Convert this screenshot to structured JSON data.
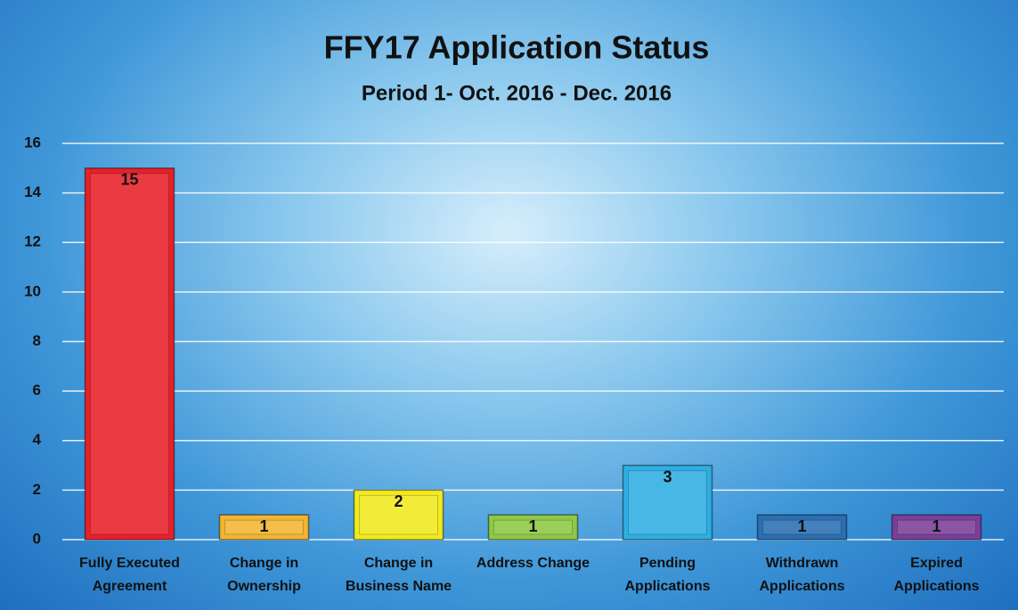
{
  "chart_data": {
    "type": "bar",
    "title": "FFY17 Application Status",
    "subtitle": "Period 1- Oct. 2016 - Dec. 2016",
    "categories": [
      "Fully Executed Agreement",
      "Change in Ownership",
      "Change in Business Name",
      "Address Change",
      "Pending Applications",
      "Withdrawn Applications",
      "Expired Applications"
    ],
    "values": [
      15,
      1,
      2,
      1,
      3,
      1,
      1
    ],
    "colors": [
      "#e8202a",
      "#f2b531",
      "#f1ea1d",
      "#8fc845",
      "#2eaee3",
      "#2a6fb3",
      "#7a3f98"
    ],
    "ylim": [
      0,
      16
    ],
    "yticks": [
      0,
      2,
      4,
      6,
      8,
      10,
      12,
      14,
      16
    ],
    "grid": true
  }
}
